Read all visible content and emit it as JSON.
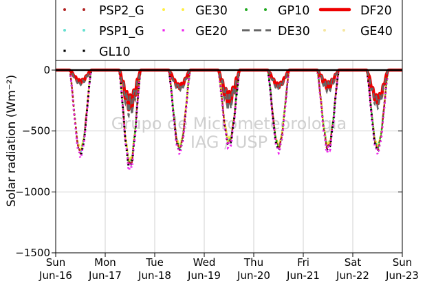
{
  "chart_data": {
    "type": "line",
    "title": "",
    "xlabel": "",
    "ylabel": "Solar radiation (Wm⁻²)",
    "ylim": [
      -1500,
      0
    ],
    "yticks": [
      0,
      -500,
      -1000,
      -1500
    ],
    "ytick_labels": [
      "0",
      "−500",
      "−1000",
      "−1500"
    ],
    "xlim": [
      "2024-06-16",
      "2024-06-23"
    ],
    "xtick_labels": [
      {
        "day": "Sun",
        "date": "Jun-16"
      },
      {
        "day": "Mon",
        "date": "Jun-17"
      },
      {
        "day": "Tue",
        "date": "Jun-18"
      },
      {
        "day": "Wed",
        "date": "Jun-19"
      },
      {
        "day": "Thu",
        "date": "Jun-20"
      },
      {
        "day": "Fri",
        "date": "Jun-21"
      },
      {
        "day": "Sat",
        "date": "Jun-22"
      },
      {
        "day": "Sun",
        "date": "Jun-23"
      }
    ],
    "grid": true,
    "legend_position": "top",
    "series": [
      {
        "name": "PSP2_G",
        "color": "#b22222",
        "style": "dotted-round"
      },
      {
        "name": "PSP1_G",
        "color": "#66e0d0",
        "style": "dotted-round"
      },
      {
        "name": "GL10",
        "color": "#000000",
        "style": "dotted-square"
      },
      {
        "name": "GE30",
        "color": "#ffee44",
        "style": "dotted-round"
      },
      {
        "name": "GE20",
        "color": "#ee22ee",
        "style": "dotted-square"
      },
      {
        "name": "GP10",
        "color": "#22aa22",
        "style": "dotted-round"
      },
      {
        "name": "DE30",
        "color": "#666666",
        "style": "dashed"
      },
      {
        "name": "DF20",
        "color": "#ee0000",
        "style": "solid-thick"
      },
      {
        "name": "GE40",
        "color": "#f5e6a0",
        "style": "dotted-round"
      }
    ],
    "daily_minimum": {
      "global": [
        -690,
        -790,
        -660,
        -610,
        -650,
        -650,
        -660
      ],
      "diffuse": [
        -105,
        -300,
        -150,
        -260,
        -140,
        -140,
        -270
      ]
    },
    "watermark": [
      "Grupo de Micrometeorologia",
      "IAG / USP"
    ]
  }
}
